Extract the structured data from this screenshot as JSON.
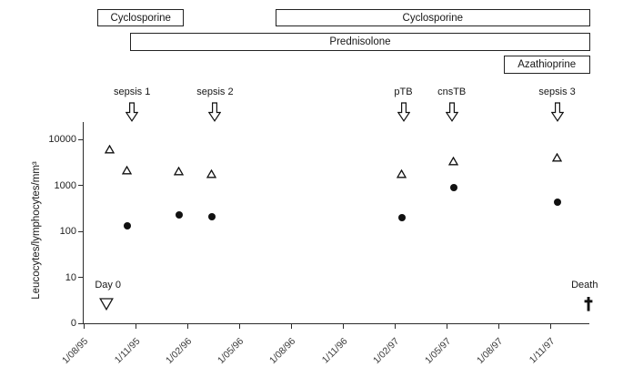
{
  "colors": {
    "ink": "#161616",
    "axis": "#2b2b2b",
    "background": "#ffffff"
  },
  "chart_data": {
    "type": "scatter",
    "title": "",
    "ylabel": "Leucocytes/lymphocytes/mm³",
    "y_scale": "log",
    "y_tick_labels": [
      "10000",
      "1000",
      "100",
      "10",
      "0"
    ],
    "x_tick_labels": [
      "1/08/95",
      "1/11/95",
      "1/02/96",
      "1/05/96",
      "1/08/96",
      "1/11/96",
      "1/02/97",
      "1/05/97",
      "1/08/97",
      "1/11/97"
    ],
    "x_unit": "months from 1/08/95, one tick every 3 months",
    "legend": "none",
    "grid": false,
    "series": [
      {
        "name": "leucocytes",
        "marker": "open-triangle",
        "points": [
          {
            "x_months": 1.5,
            "value": 6000
          },
          {
            "x_months": 2.5,
            "value": 2100
          },
          {
            "x_months": 5.5,
            "value": 2000
          },
          {
            "x_months": 7.4,
            "value": 1800
          },
          {
            "x_months": 18.4,
            "value": 1800
          },
          {
            "x_months": 21.4,
            "value": 3300
          },
          {
            "x_months": 27.4,
            "value": 4000
          }
        ]
      },
      {
        "name": "lymphocytes",
        "marker": "filled-circle",
        "points": [
          {
            "x_months": 2.5,
            "value": 130
          },
          {
            "x_months": 5.5,
            "value": 230
          },
          {
            "x_months": 7.4,
            "value": 210
          },
          {
            "x_months": 18.4,
            "value": 200
          },
          {
            "x_months": 21.4,
            "value": 900
          },
          {
            "x_months": 27.4,
            "value": 430
          }
        ]
      }
    ],
    "treatment_bars": [
      {
        "label": "Cyclosporine",
        "row": 0,
        "start_months": 0.8,
        "end_months": 5.8
      },
      {
        "label": "Cyclosporine",
        "row": 0,
        "start_months": 11.1,
        "end_months": 29.3
      },
      {
        "label": "Prednisolone",
        "row": 1,
        "start_months": 2.7,
        "end_months": 29.3
      },
      {
        "label": "Azathioprine",
        "row": 2,
        "start_months": 24.3,
        "end_months": 29.3
      }
    ],
    "event_arrows": [
      {
        "label": "sepsis 1",
        "x_months": 2.8
      },
      {
        "label": "sepsis 2",
        "x_months": 7.6
      },
      {
        "label": "pTB",
        "x_months": 18.5
      },
      {
        "label": "cnsTB",
        "x_months": 21.3
      },
      {
        "label": "sepsis 3",
        "x_months": 27.4
      }
    ],
    "annotations": {
      "day0": {
        "label": "Day 0",
        "x_months": 1.3,
        "marker": "open-inverted-triangle"
      },
      "death": {
        "label": "Death",
        "x_months": 29.2,
        "marker": "cross"
      }
    }
  }
}
